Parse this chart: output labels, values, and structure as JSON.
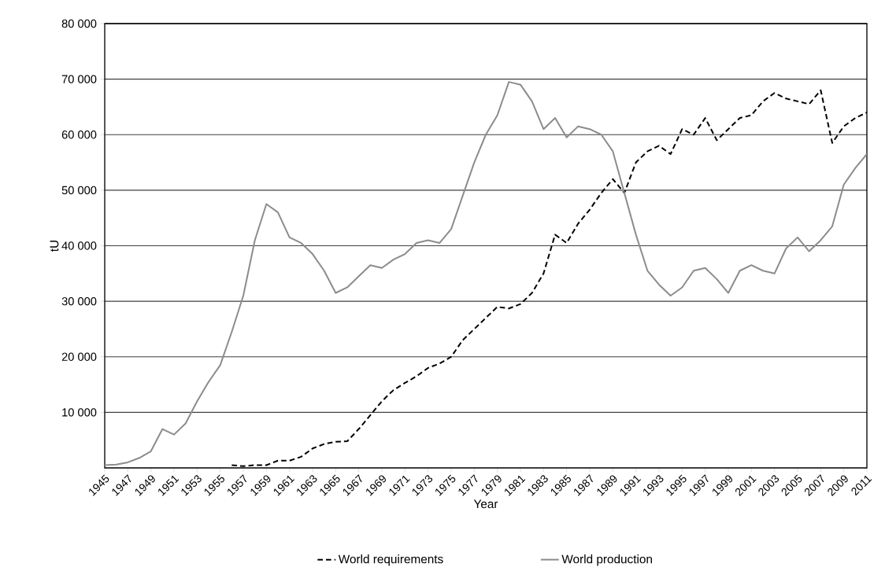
{
  "chart_data": {
    "type": "line",
    "xlabel": "Year",
    "ylabel": "tU",
    "categories": [
      "1945",
      null,
      "1947",
      null,
      "1949",
      null,
      "1951",
      null,
      "1953",
      null,
      "1955",
      null,
      "1957",
      null,
      "1959",
      null,
      "1961",
      null,
      "1963",
      null,
      "1965",
      null,
      "1967",
      null,
      "1969",
      null,
      "1971",
      null,
      "1973",
      null,
      "1975",
      null,
      "1977",
      null,
      "1979",
      null,
      "1981",
      null,
      "1983",
      null,
      "1985",
      null,
      "1987",
      null,
      "1989",
      null,
      "1991",
      null,
      "1993",
      null,
      "1995",
      null,
      "1997",
      null,
      "1999",
      null,
      "2001",
      null,
      "2003",
      null,
      "2005",
      null,
      "2007",
      null,
      "2009",
      null,
      "2011"
    ],
    "series": [
      {
        "name": "World requirements",
        "color": "#000000",
        "line_style": "dashed",
        "values": [
          null,
          null,
          null,
          null,
          null,
          null,
          null,
          null,
          null,
          null,
          null,
          500,
          300,
          500,
          500,
          1300,
          1300,
          2000,
          3500,
          4300,
          4700,
          4800,
          7000,
          9500,
          12000,
          14000,
          15300,
          16500,
          18000,
          18800,
          20000,
          23000,
          25000,
          27000,
          29000,
          28700,
          29500,
          31500,
          35000,
          42000,
          40500,
          44000,
          46500,
          49500,
          52000,
          49500,
          55000,
          57000,
          58000,
          56500,
          61000,
          60000,
          63000,
          59000,
          61000,
          63000,
          63500,
          66000,
          67500,
          66500,
          66000,
          65500,
          68000,
          58500,
          61500,
          63000,
          64000
        ]
      },
      {
        "name": "World production",
        "color": "#8c8c8c",
        "line_style": "solid",
        "values": [
          500,
          600,
          1000,
          1800,
          3000,
          7000,
          6000,
          8000,
          12000,
          15500,
          18500,
          24500,
          31000,
          41000,
          47500,
          46000,
          41500,
          40500,
          38500,
          35500,
          31500,
          32500,
          34500,
          36500,
          36000,
          37500,
          38500,
          40500,
          41000,
          40500,
          43000,
          49000,
          55000,
          60000,
          63500,
          69500,
          69000,
          66000,
          61000,
          63000,
          59500,
          61500,
          61000,
          60000,
          57000,
          49500,
          42000,
          35500,
          33000,
          31000,
          32500,
          35500,
          36000,
          34000,
          31500,
          35500,
          36500,
          35500,
          35000,
          39500,
          41500,
          39000,
          41000,
          43500,
          51000,
          54000,
          56500
        ]
      }
    ],
    "ylim": [
      0,
      80000
    ],
    "yticks": [
      {
        "value": 10000,
        "label": "10 000"
      },
      {
        "value": 20000,
        "label": "20 000"
      },
      {
        "value": 30000,
        "label": "30 000"
      },
      {
        "value": 40000,
        "label": "40 000"
      },
      {
        "value": 50000,
        "label": "50 000"
      },
      {
        "value": 60000,
        "label": "60 000"
      },
      {
        "value": 70000,
        "label": "70 000"
      },
      {
        "value": 80000,
        "label": "80 000"
      }
    ],
    "grid": "y",
    "legend": "bottom",
    "marker": "none"
  }
}
